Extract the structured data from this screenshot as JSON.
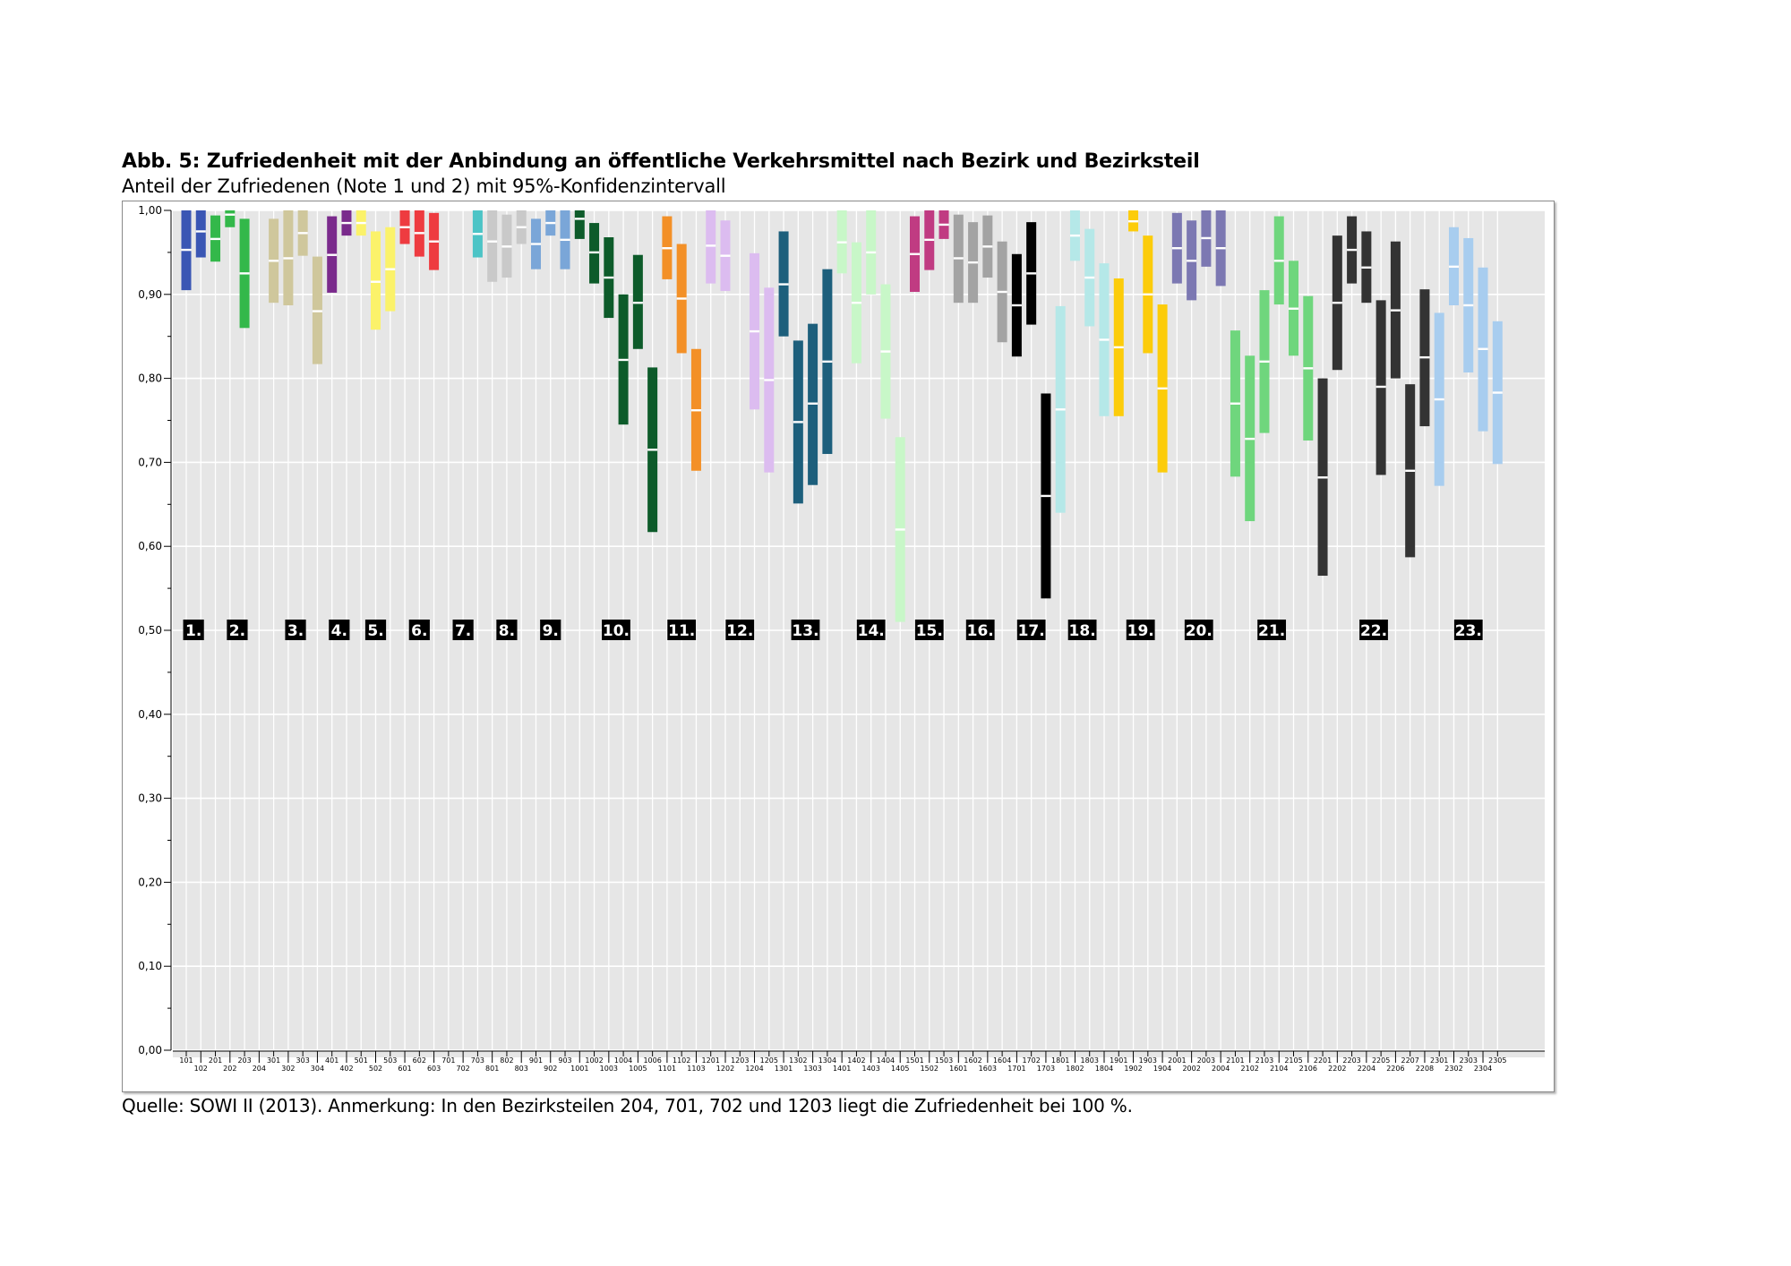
{
  "title": "Abb. 5: Zufriedenheit mit der Anbindung an öffentliche Verkehrsmittel nach Bezirk und Bezirksteil",
  "subtitle": "Anteil der Zufriedenen (Note 1 und 2) mit 95%-Konfidenzintervall",
  "source": "Quelle: SOWI II (2013). Anmerkung: In den Bezirksteilen 204, 701, 702 und 1203 liegt die Zufriedenheit bei 100 %.",
  "chart_data": {
    "type": "bar",
    "subtype": "confidence-interval range bars with point estimate markers",
    "ylim": [
      0,
      1
    ],
    "y_ticks": [
      "0,00",
      "0,10",
      "0,20",
      "0,30",
      "0,40",
      "0,50",
      "0,60",
      "0,70",
      "0,80",
      "0,90",
      "1,00"
    ],
    "grid": true,
    "district_colors": {
      "1": "#3a56b4",
      "2": "#33b84a",
      "3": "#cfc79c",
      "4": "#7a2a8c",
      "5": "#fbf26a",
      "6": "#ee3b40",
      "7": "#4cc4c6",
      "8": "#c9c9c9",
      "9": "#7aa6d8",
      "10": "#0d5b2a",
      "11": "#f39027",
      "12": "#dcbcf0",
      "13": "#1d5f7c",
      "14": "#c8f7c8",
      "15": "#c03b82",
      "16": "#a3a3a3",
      "17": "#000000",
      "18": "#b5e8e8",
      "19": "#fccc0a",
      "20": "#7c78b2",
      "21": "#6fd67d",
      "22": "#333333",
      "23": "#a8cdef"
    },
    "district_labels": [
      {
        "label": "1.",
        "district": "1"
      },
      {
        "label": "2.",
        "district": "2"
      },
      {
        "label": "3.",
        "district": "3"
      },
      {
        "label": "4.",
        "district": "4"
      },
      {
        "label": "5.",
        "district": "5"
      },
      {
        "label": "6.",
        "district": "6"
      },
      {
        "label": "7.",
        "district": "7"
      },
      {
        "label": "8.",
        "district": "8"
      },
      {
        "label": "9.",
        "district": "9"
      },
      {
        "label": "10.",
        "district": "10"
      },
      {
        "label": "11.",
        "district": "11"
      },
      {
        "label": "12.",
        "district": "12"
      },
      {
        "label": "13.",
        "district": "13"
      },
      {
        "label": "14.",
        "district": "14"
      },
      {
        "label": "15.",
        "district": "15"
      },
      {
        "label": "16.",
        "district": "16"
      },
      {
        "label": "17.",
        "district": "17"
      },
      {
        "label": "18.",
        "district": "18"
      },
      {
        "label": "19.",
        "district": "19"
      },
      {
        "label": "20.",
        "district": "20"
      },
      {
        "label": "21.",
        "district": "21"
      },
      {
        "label": "22.",
        "district": "22"
      },
      {
        "label": "23.",
        "district": "23"
      }
    ],
    "parts": [
      {
        "label": "101",
        "district": "1",
        "low": 0.905,
        "mean": 0.953,
        "high": 1.0
      },
      {
        "label": "102",
        "district": "1",
        "low": 0.944,
        "mean": 0.975,
        "high": 1.0
      },
      {
        "label": "201",
        "district": "2",
        "low": 0.939,
        "mean": 0.966,
        "high": 0.994
      },
      {
        "label": "202",
        "district": "2",
        "low": 0.98,
        "mean": 0.995,
        "high": 1.0
      },
      {
        "label": "203",
        "district": "2",
        "low": 0.86,
        "mean": 0.925,
        "high": 0.99
      },
      {
        "label": "204",
        "district": "2",
        "low": null,
        "mean": null,
        "high": null
      },
      {
        "label": "301",
        "district": "3",
        "low": 0.89,
        "mean": 0.94,
        "high": 0.99
      },
      {
        "label": "302",
        "district": "3",
        "low": 0.887,
        "mean": 0.943,
        "high": 1.0
      },
      {
        "label": "303",
        "district": "3",
        "low": 0.946,
        "mean": 0.973,
        "high": 1.0
      },
      {
        "label": "304",
        "district": "3",
        "low": 0.817,
        "mean": 0.88,
        "high": 0.945
      },
      {
        "label": "401",
        "district": "4",
        "low": 0.902,
        "mean": 0.947,
        "high": 0.993
      },
      {
        "label": "402",
        "district": "4",
        "low": 0.97,
        "mean": 0.985,
        "high": 1.0
      },
      {
        "label": "501",
        "district": "5",
        "low": 0.97,
        "mean": 0.985,
        "high": 1.0
      },
      {
        "label": "502",
        "district": "5",
        "low": 0.858,
        "mean": 0.915,
        "high": 0.975
      },
      {
        "label": "503",
        "district": "5",
        "low": 0.88,
        "mean": 0.93,
        "high": 0.98
      },
      {
        "label": "601",
        "district": "6",
        "low": 0.96,
        "mean": 0.98,
        "high": 1.0
      },
      {
        "label": "602",
        "district": "6",
        "low": 0.945,
        "mean": 0.973,
        "high": 1.0
      },
      {
        "label": "603",
        "district": "6",
        "low": 0.929,
        "mean": 0.963,
        "high": 0.997
      },
      {
        "label": "701",
        "district": "7",
        "low": null,
        "mean": null,
        "high": null
      },
      {
        "label": "702",
        "district": "7",
        "low": null,
        "mean": null,
        "high": null
      },
      {
        "label": "703",
        "district": "7",
        "low": 0.944,
        "mean": 0.972,
        "high": 1.0
      },
      {
        "label": "801",
        "district": "8",
        "low": 0.915,
        "mean": 0.963,
        "high": 1.0
      },
      {
        "label": "802",
        "district": "8",
        "low": 0.92,
        "mean": 0.957,
        "high": 0.995
      },
      {
        "label": "803",
        "district": "8",
        "low": 0.96,
        "mean": 0.98,
        "high": 1.0
      },
      {
        "label": "901",
        "district": "9",
        "low": 0.93,
        "mean": 0.96,
        "high": 0.99
      },
      {
        "label": "902",
        "district": "9",
        "low": 0.97,
        "mean": 0.985,
        "high": 1.0
      },
      {
        "label": "903",
        "district": "9",
        "low": 0.93,
        "mean": 0.965,
        "high": 1.0
      },
      {
        "label": "1001",
        "district": "10",
        "low": 0.966,
        "mean": 0.99,
        "high": 1.0
      },
      {
        "label": "1002",
        "district": "10",
        "low": 0.913,
        "mean": 0.95,
        "high": 0.985
      },
      {
        "label": "1003",
        "district": "10",
        "low": 0.872,
        "mean": 0.92,
        "high": 0.968
      },
      {
        "label": "1004",
        "district": "10",
        "low": 0.745,
        "mean": 0.822,
        "high": 0.9
      },
      {
        "label": "1005",
        "district": "10",
        "low": 0.835,
        "mean": 0.89,
        "high": 0.947
      },
      {
        "label": "1006",
        "district": "10",
        "low": 0.617,
        "mean": 0.715,
        "high": 0.813
      },
      {
        "label": "1101",
        "district": "11",
        "low": 0.918,
        "mean": 0.955,
        "high": 0.993
      },
      {
        "label": "1102",
        "district": "11",
        "low": 0.83,
        "mean": 0.895,
        "high": 0.96
      },
      {
        "label": "1103",
        "district": "11",
        "low": 0.69,
        "mean": 0.762,
        "high": 0.835
      },
      {
        "label": "1201",
        "district": "12",
        "low": 0.913,
        "mean": 0.958,
        "high": 1.0
      },
      {
        "label": "1202",
        "district": "12",
        "low": 0.904,
        "mean": 0.946,
        "high": 0.988
      },
      {
        "label": "1203",
        "district": "12",
        "low": null,
        "mean": null,
        "high": null
      },
      {
        "label": "1204",
        "district": "12",
        "low": 0.763,
        "mean": 0.856,
        "high": 0.949
      },
      {
        "label": "1205",
        "district": "12",
        "low": 0.688,
        "mean": 0.798,
        "high": 0.908
      },
      {
        "label": "1301",
        "district": "13",
        "low": 0.85,
        "mean": 0.912,
        "high": 0.975
      },
      {
        "label": "1302",
        "district": "13",
        "low": 0.651,
        "mean": 0.748,
        "high": 0.845
      },
      {
        "label": "1303",
        "district": "13",
        "low": 0.673,
        "mean": 0.77,
        "high": 0.865
      },
      {
        "label": "1304",
        "district": "13",
        "low": 0.71,
        "mean": 0.82,
        "high": 0.93
      },
      {
        "label": "1401",
        "district": "14",
        "low": 0.925,
        "mean": 0.962,
        "high": 1.0
      },
      {
        "label": "1402",
        "district": "14",
        "low": 0.818,
        "mean": 0.89,
        "high": 0.962
      },
      {
        "label": "1403",
        "district": "14",
        "low": 0.9,
        "mean": 0.95,
        "high": 1.0
      },
      {
        "label": "1404",
        "district": "14",
        "low": 0.752,
        "mean": 0.832,
        "high": 0.912
      },
      {
        "label": "1405",
        "district": "14",
        "low": 0.51,
        "mean": 0.62,
        "high": 0.73
      },
      {
        "label": "1501",
        "district": "15",
        "low": 0.903,
        "mean": 0.948,
        "high": 0.993
      },
      {
        "label": "1502",
        "district": "15",
        "low": 0.929,
        "mean": 0.965,
        "high": 1.0
      },
      {
        "label": "1503",
        "district": "15",
        "low": 0.966,
        "mean": 0.983,
        "high": 1.0
      },
      {
        "label": "1601",
        "district": "16",
        "low": 0.89,
        "mean": 0.943,
        "high": 0.995
      },
      {
        "label": "1602",
        "district": "16",
        "low": 0.89,
        "mean": 0.938,
        "high": 0.986
      },
      {
        "label": "1603",
        "district": "16",
        "low": 0.92,
        "mean": 0.957,
        "high": 0.994
      },
      {
        "label": "1604",
        "district": "16",
        "low": 0.843,
        "mean": 0.903,
        "high": 0.963
      },
      {
        "label": "1701",
        "district": "17",
        "low": 0.826,
        "mean": 0.887,
        "high": 0.948
      },
      {
        "label": "1702",
        "district": "17",
        "low": 0.864,
        "mean": 0.925,
        "high": 0.986
      },
      {
        "label": "1703",
        "district": "17",
        "low": 0.538,
        "mean": 0.66,
        "high": 0.782
      },
      {
        "label": "1801",
        "district": "18",
        "low": 0.64,
        "mean": 0.763,
        "high": 0.886
      },
      {
        "label": "1802",
        "district": "18",
        "low": 0.94,
        "mean": 0.97,
        "high": 1.0
      },
      {
        "label": "1803",
        "district": "18",
        "low": 0.862,
        "mean": 0.92,
        "high": 0.978
      },
      {
        "label": "1804",
        "district": "18",
        "low": 0.755,
        "mean": 0.846,
        "high": 0.937
      },
      {
        "label": "1901",
        "district": "19",
        "low": 0.755,
        "mean": 0.837,
        "high": 0.919
      },
      {
        "label": "1902",
        "district": "19",
        "low": 0.975,
        "mean": 0.987,
        "high": 1.0
      },
      {
        "label": "1903",
        "district": "19",
        "low": 0.83,
        "mean": 0.9,
        "high": 0.97
      },
      {
        "label": "1904",
        "district": "19",
        "low": 0.688,
        "mean": 0.788,
        "high": 0.888
      },
      {
        "label": "2001",
        "district": "20",
        "low": 0.913,
        "mean": 0.955,
        "high": 0.997
      },
      {
        "label": "2002",
        "district": "20",
        "low": 0.893,
        "mean": 0.94,
        "high": 0.988
      },
      {
        "label": "2003",
        "district": "20",
        "low": 0.933,
        "mean": 0.967,
        "high": 1.0
      },
      {
        "label": "2004",
        "district": "20",
        "low": 0.91,
        "mean": 0.955,
        "high": 1.0
      },
      {
        "label": "2101",
        "district": "21",
        "low": 0.683,
        "mean": 0.77,
        "high": 0.857
      },
      {
        "label": "2102",
        "district": "21",
        "low": 0.63,
        "mean": 0.728,
        "high": 0.827
      },
      {
        "label": "2103",
        "district": "21",
        "low": 0.735,
        "mean": 0.82,
        "high": 0.905
      },
      {
        "label": "2104",
        "district": "21",
        "low": 0.888,
        "mean": 0.94,
        "high": 0.993
      },
      {
        "label": "2105",
        "district": "21",
        "low": 0.827,
        "mean": 0.883,
        "high": 0.94
      },
      {
        "label": "2106",
        "district": "21",
        "low": 0.726,
        "mean": 0.812,
        "high": 0.898
      },
      {
        "label": "2201",
        "district": "22",
        "low": 0.565,
        "mean": 0.682,
        "high": 0.8
      },
      {
        "label": "2202",
        "district": "22",
        "low": 0.81,
        "mean": 0.89,
        "high": 0.97
      },
      {
        "label": "2203",
        "district": "22",
        "low": 0.913,
        "mean": 0.953,
        "high": 0.993
      },
      {
        "label": "2204",
        "district": "22",
        "low": 0.89,
        "mean": 0.932,
        "high": 0.975
      },
      {
        "label": "2205",
        "district": "22",
        "low": 0.685,
        "mean": 0.79,
        "high": 0.893
      },
      {
        "label": "2206",
        "district": "22",
        "low": 0.8,
        "mean": 0.881,
        "high": 0.963
      },
      {
        "label": "2207",
        "district": "22",
        "low": 0.587,
        "mean": 0.69,
        "high": 0.793
      },
      {
        "label": "2208",
        "district": "22",
        "low": 0.743,
        "mean": 0.825,
        "high": 0.906
      },
      {
        "label": "2301",
        "district": "23",
        "low": 0.672,
        "mean": 0.775,
        "high": 0.878
      },
      {
        "label": "2302",
        "district": "23",
        "low": 0.887,
        "mean": 0.933,
        "high": 0.98
      },
      {
        "label": "2303",
        "district": "23",
        "low": 0.807,
        "mean": 0.887,
        "high": 0.967
      },
      {
        "label": "2304",
        "district": "23",
        "low": 0.737,
        "mean": 0.835,
        "high": 0.932
      },
      {
        "label": "2305",
        "district": "23",
        "low": 0.698,
        "mean": 0.783,
        "high": 0.868
      }
    ]
  }
}
